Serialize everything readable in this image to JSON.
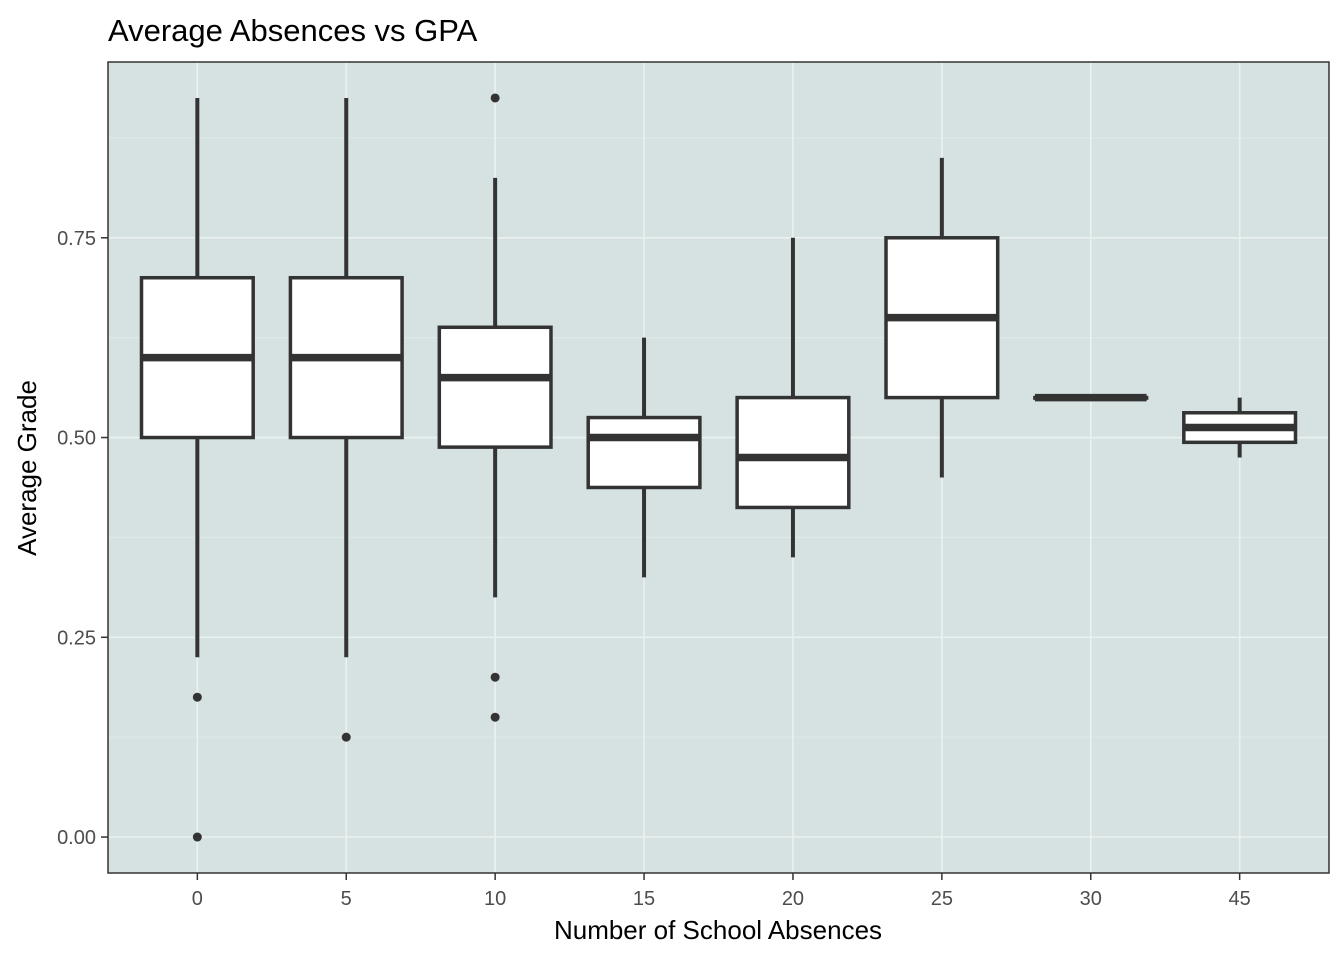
{
  "chart_data": {
    "type": "boxplot",
    "title": "Average Absences vs GPA",
    "xlabel": "Number of School Absences",
    "ylabel": "Average Grade",
    "categories": [
      "0",
      "5",
      "10",
      "15",
      "20",
      "25",
      "30",
      "45"
    ],
    "ylim": [
      -0.045,
      0.97
    ],
    "yticks": [
      0.0,
      0.25,
      0.5,
      0.75
    ],
    "ytick_labels": [
      "0.00",
      "0.25",
      "0.50",
      "0.75"
    ],
    "grid": true,
    "boxes": [
      {
        "category": "0",
        "whisker_low": 0.225,
        "q1": 0.5,
        "median": 0.6,
        "q3": 0.7,
        "whisker_high": 0.925,
        "outliers": [
          0.175,
          0.0
        ]
      },
      {
        "category": "5",
        "whisker_low": 0.225,
        "q1": 0.5,
        "median": 0.6,
        "q3": 0.7,
        "whisker_high": 0.925,
        "outliers": [
          0.125
        ]
      },
      {
        "category": "10",
        "whisker_low": 0.3,
        "q1": 0.488,
        "median": 0.575,
        "q3": 0.638,
        "whisker_high": 0.825,
        "outliers": [
          0.925,
          0.2,
          0.15
        ]
      },
      {
        "category": "15",
        "whisker_low": 0.325,
        "q1": 0.4375,
        "median": 0.5,
        "q3": 0.525,
        "whisker_high": 0.625,
        "outliers": []
      },
      {
        "category": "20",
        "whisker_low": 0.35,
        "q1": 0.4125,
        "median": 0.475,
        "q3": 0.55,
        "whisker_high": 0.75,
        "outliers": []
      },
      {
        "category": "25",
        "whisker_low": 0.45,
        "q1": 0.55,
        "median": 0.65,
        "q3": 0.75,
        "whisker_high": 0.85,
        "outliers": []
      },
      {
        "category": "30",
        "whisker_low": 0.55,
        "q1": 0.55,
        "median": 0.55,
        "q3": 0.55,
        "whisker_high": 0.55,
        "outliers": []
      },
      {
        "category": "45",
        "whisker_low": 0.475,
        "q1": 0.494,
        "median": 0.5125,
        "q3": 0.531,
        "whisker_high": 0.55,
        "outliers": []
      }
    ],
    "colors": {
      "panel_background": "#d6e2e2",
      "grid_major": "#ebf0f0",
      "grid_minor": "#e1e9e9",
      "box_fill": "#ffffff",
      "box_line": "#333333",
      "panel_border": "#333333",
      "tick_label": "#4d4d4d"
    }
  }
}
